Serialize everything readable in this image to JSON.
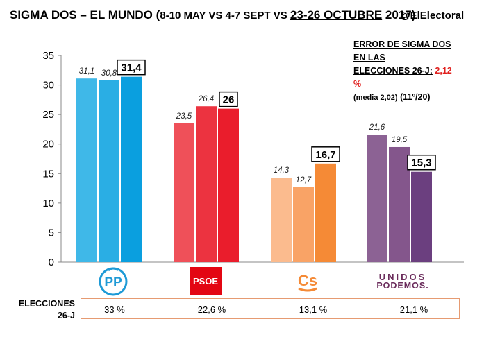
{
  "header": {
    "title_main": "SIGMA DOS – EL MUNDO",
    "title_paren_open": " (",
    "title_sub": "8-10 MAY VS 4-7 SEPT VS ",
    "title_highlight": "23-26 OCTUBRE",
    "title_year": " 2017)",
    "handle": "@ElElectoral"
  },
  "error_box": {
    "line1": "ERROR DE SIGMA DOS EN LAS",
    "line2_prefix": "ELECCIONES 26-J:",
    "line2_value": "2,12 %",
    "line3_small": "(media 2,02)",
    "line3_rank": "(11º/20)",
    "value_color": "#e0201e"
  },
  "chart_data": {
    "type": "bar",
    "ylim": [
      0,
      35
    ],
    "yticks": [
      0,
      5,
      10,
      15,
      20,
      25,
      30,
      35
    ],
    "grid": false,
    "categories": [
      "PP",
      "PSOE",
      "Cs",
      "Unidos Podemos"
    ],
    "polls": [
      "8-10 MAY",
      "4-7 SEPT",
      "23-26 OCTUBRE"
    ],
    "groups": [
      {
        "party": "PP",
        "values": [
          31.1,
          30.8,
          31.4
        ],
        "labels": [
          "31,1",
          "30,8",
          "31,4"
        ],
        "colors": [
          "#3fb8e8",
          "#2aaee4",
          "#0a9fdf"
        ]
      },
      {
        "party": "PSOE",
        "values": [
          23.5,
          26.4,
          26
        ],
        "labels": [
          "23,5",
          "26,4",
          "26"
        ],
        "colors": [
          "#ef5059",
          "#ec3340",
          "#ea1d2c"
        ]
      },
      {
        "party": "Cs",
        "values": [
          14.3,
          12.7,
          16.7
        ],
        "labels": [
          "14,3",
          "12,7",
          "16,7"
        ],
        "colors": [
          "#fbbb8e",
          "#f9a366",
          "#f58a36"
        ]
      },
      {
        "party": "Unidos Podemos",
        "values": [
          21.6,
          19.5,
          15.3
        ],
        "labels": [
          "21,6",
          "19,5",
          "15,3"
        ],
        "colors": [
          "#8c6294",
          "#84568c",
          "#6b3f7f"
        ]
      }
    ]
  },
  "logos": {
    "pp": "PP",
    "psoe": "PSOE",
    "cs": "Cs",
    "up_line1": "UNIDOS",
    "up_line2": "PODEMOS."
  },
  "elecciones": {
    "label_line1": "ELECCIONES",
    "label_line2": "26-J",
    "values": [
      "33 %",
      "22,6 %",
      "13,1 %",
      "21,1 %"
    ]
  }
}
